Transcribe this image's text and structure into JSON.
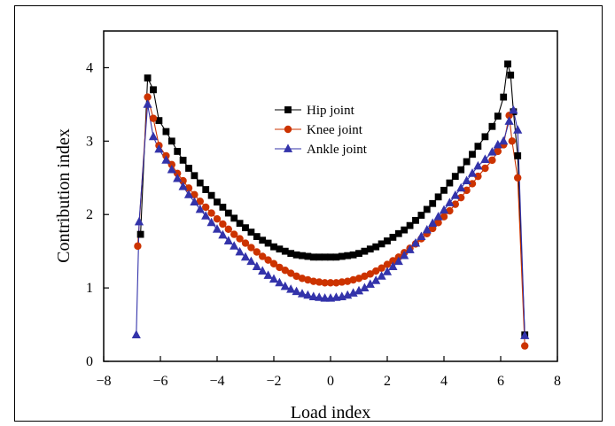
{
  "chart_data": {
    "type": "line",
    "title": "",
    "xlabel": "Load index",
    "ylabel": "Contribution index",
    "xlim": [
      -8,
      8
    ],
    "ylim": [
      0,
      4.5
    ],
    "xticks": [
      -8,
      -6,
      -4,
      -2,
      0,
      2,
      4,
      6,
      8
    ],
    "yticks": [
      0,
      1,
      2,
      3,
      4
    ],
    "grid": false,
    "legend_position": "upper-center",
    "series": [
      {
        "name": "Hip joint",
        "color": "#000000",
        "marker": "square",
        "points": [
          [
            -6.7,
            1.73
          ],
          [
            -6.45,
            3.86
          ],
          [
            -6.25,
            3.7
          ],
          [
            -6.05,
            3.28
          ],
          [
            -5.8,
            3.13
          ],
          [
            -5.6,
            3.0
          ],
          [
            -5.4,
            2.86
          ],
          [
            -5.2,
            2.74
          ],
          [
            -5.0,
            2.63
          ],
          [
            -4.8,
            2.53
          ],
          [
            -4.6,
            2.43
          ],
          [
            -4.4,
            2.34
          ],
          [
            -4.2,
            2.26
          ],
          [
            -4.0,
            2.17
          ],
          [
            -3.8,
            2.1
          ],
          [
            -3.6,
            2.02
          ],
          [
            -3.4,
            1.95
          ],
          [
            -3.2,
            1.88
          ],
          [
            -3.0,
            1.82
          ],
          [
            -2.8,
            1.76
          ],
          [
            -2.6,
            1.7
          ],
          [
            -2.4,
            1.65
          ],
          [
            -2.2,
            1.61
          ],
          [
            -2.0,
            1.56
          ],
          [
            -1.8,
            1.53
          ],
          [
            -1.6,
            1.5
          ],
          [
            -1.4,
            1.47
          ],
          [
            -1.2,
            1.45
          ],
          [
            -1.0,
            1.44
          ],
          [
            -0.8,
            1.43
          ],
          [
            -0.6,
            1.42
          ],
          [
            -0.4,
            1.42
          ],
          [
            -0.2,
            1.42
          ],
          [
            0.0,
            1.42
          ],
          [
            0.2,
            1.42
          ],
          [
            0.4,
            1.43
          ],
          [
            0.6,
            1.44
          ],
          [
            0.8,
            1.45
          ],
          [
            1.0,
            1.47
          ],
          [
            1.2,
            1.5
          ],
          [
            1.4,
            1.53
          ],
          [
            1.6,
            1.56
          ],
          [
            1.8,
            1.6
          ],
          [
            2.0,
            1.64
          ],
          [
            2.2,
            1.69
          ],
          [
            2.4,
            1.74
          ],
          [
            2.6,
            1.79
          ],
          [
            2.8,
            1.85
          ],
          [
            3.0,
            1.92
          ],
          [
            3.2,
            1.99
          ],
          [
            3.4,
            2.07
          ],
          [
            3.6,
            2.15
          ],
          [
            3.8,
            2.24
          ],
          [
            4.0,
            2.33
          ],
          [
            4.2,
            2.43
          ],
          [
            4.4,
            2.52
          ],
          [
            4.6,
            2.61
          ],
          [
            4.8,
            2.72
          ],
          [
            5.0,
            2.82
          ],
          [
            5.2,
            2.93
          ],
          [
            5.45,
            3.06
          ],
          [
            5.7,
            3.2
          ],
          [
            5.9,
            3.34
          ],
          [
            6.1,
            3.6
          ],
          [
            6.25,
            4.05
          ],
          [
            6.35,
            3.9
          ],
          [
            6.45,
            3.4
          ],
          [
            6.6,
            2.8
          ],
          [
            6.85,
            0.36
          ]
        ]
      },
      {
        "name": "Knee joint",
        "color": "#cc3300",
        "marker": "circle",
        "points": [
          [
            -6.8,
            1.57
          ],
          [
            -6.45,
            3.6
          ],
          [
            -6.25,
            3.31
          ],
          [
            -6.05,
            2.94
          ],
          [
            -5.8,
            2.8
          ],
          [
            -5.6,
            2.68
          ],
          [
            -5.4,
            2.56
          ],
          [
            -5.2,
            2.46
          ],
          [
            -5.0,
            2.36
          ],
          [
            -4.8,
            2.27
          ],
          [
            -4.6,
            2.18
          ],
          [
            -4.4,
            2.1
          ],
          [
            -4.2,
            2.02
          ],
          [
            -4.0,
            1.94
          ],
          [
            -3.8,
            1.87
          ],
          [
            -3.6,
            1.8
          ],
          [
            -3.4,
            1.73
          ],
          [
            -3.2,
            1.67
          ],
          [
            -3.0,
            1.61
          ],
          [
            -2.8,
            1.55
          ],
          [
            -2.6,
            1.49
          ],
          [
            -2.4,
            1.43
          ],
          [
            -2.2,
            1.38
          ],
          [
            -2.0,
            1.33
          ],
          [
            -1.8,
            1.28
          ],
          [
            -1.6,
            1.24
          ],
          [
            -1.4,
            1.2
          ],
          [
            -1.2,
            1.16
          ],
          [
            -1.0,
            1.13
          ],
          [
            -0.8,
            1.11
          ],
          [
            -0.6,
            1.09
          ],
          [
            -0.4,
            1.08
          ],
          [
            -0.2,
            1.07
          ],
          [
            0.0,
            1.07
          ],
          [
            0.2,
            1.07
          ],
          [
            0.4,
            1.08
          ],
          [
            0.6,
            1.09
          ],
          [
            0.8,
            1.11
          ],
          [
            1.0,
            1.13
          ],
          [
            1.2,
            1.16
          ],
          [
            1.4,
            1.19
          ],
          [
            1.6,
            1.23
          ],
          [
            1.8,
            1.27
          ],
          [
            2.0,
            1.32
          ],
          [
            2.2,
            1.37
          ],
          [
            2.4,
            1.42
          ],
          [
            2.6,
            1.48
          ],
          [
            2.8,
            1.54
          ],
          [
            3.0,
            1.6
          ],
          [
            3.2,
            1.67
          ],
          [
            3.4,
            1.74
          ],
          [
            3.6,
            1.81
          ],
          [
            3.8,
            1.89
          ],
          [
            4.0,
            1.97
          ],
          [
            4.2,
            2.05
          ],
          [
            4.4,
            2.14
          ],
          [
            4.6,
            2.23
          ],
          [
            4.8,
            2.33
          ],
          [
            5.0,
            2.42
          ],
          [
            5.2,
            2.52
          ],
          [
            5.45,
            2.63
          ],
          [
            5.7,
            2.74
          ],
          [
            5.9,
            2.86
          ],
          [
            6.1,
            2.95
          ],
          [
            6.3,
            3.35
          ],
          [
            6.4,
            3.0
          ],
          [
            6.6,
            2.5
          ],
          [
            6.85,
            0.21
          ]
        ]
      },
      {
        "name": "Ankle joint",
        "color": "#3333aa",
        "marker": "triangle",
        "points": [
          [
            -6.85,
            0.36
          ],
          [
            -6.75,
            1.9
          ],
          [
            -6.45,
            3.5
          ],
          [
            -6.25,
            3.06
          ],
          [
            -6.05,
            2.89
          ],
          [
            -5.8,
            2.74
          ],
          [
            -5.6,
            2.61
          ],
          [
            -5.4,
            2.49
          ],
          [
            -5.2,
            2.38
          ],
          [
            -5.0,
            2.27
          ],
          [
            -4.8,
            2.17
          ],
          [
            -4.6,
            2.07
          ],
          [
            -4.4,
            1.98
          ],
          [
            -4.2,
            1.89
          ],
          [
            -4.0,
            1.8
          ],
          [
            -3.8,
            1.72
          ],
          [
            -3.6,
            1.64
          ],
          [
            -3.4,
            1.57
          ],
          [
            -3.2,
            1.49
          ],
          [
            -3.0,
            1.42
          ],
          [
            -2.8,
            1.36
          ],
          [
            -2.6,
            1.29
          ],
          [
            -2.4,
            1.23
          ],
          [
            -2.2,
            1.17
          ],
          [
            -2.0,
            1.12
          ],
          [
            -1.8,
            1.07
          ],
          [
            -1.6,
            1.02
          ],
          [
            -1.4,
            0.98
          ],
          [
            -1.2,
            0.95
          ],
          [
            -1.0,
            0.92
          ],
          [
            -0.8,
            0.9
          ],
          [
            -0.6,
            0.88
          ],
          [
            -0.4,
            0.87
          ],
          [
            -0.2,
            0.86
          ],
          [
            0.0,
            0.86
          ],
          [
            0.2,
            0.87
          ],
          [
            0.4,
            0.88
          ],
          [
            0.6,
            0.9
          ],
          [
            0.8,
            0.93
          ],
          [
            1.0,
            0.96
          ],
          [
            1.2,
            1.0
          ],
          [
            1.4,
            1.05
          ],
          [
            1.6,
            1.1
          ],
          [
            1.8,
            1.16
          ],
          [
            2.0,
            1.22
          ],
          [
            2.2,
            1.29
          ],
          [
            2.4,
            1.36
          ],
          [
            2.6,
            1.44
          ],
          [
            2.8,
            1.52
          ],
          [
            3.0,
            1.61
          ],
          [
            3.2,
            1.7
          ],
          [
            3.4,
            1.79
          ],
          [
            3.6,
            1.88
          ],
          [
            3.8,
            1.97
          ],
          [
            4.0,
            2.06
          ],
          [
            4.2,
            2.16
          ],
          [
            4.4,
            2.26
          ],
          [
            4.6,
            2.36
          ],
          [
            4.8,
            2.46
          ],
          [
            5.0,
            2.56
          ],
          [
            5.2,
            2.66
          ],
          [
            5.45,
            2.75
          ],
          [
            5.7,
            2.85
          ],
          [
            5.9,
            2.95
          ],
          [
            6.1,
            3.0
          ],
          [
            6.3,
            3.27
          ],
          [
            6.45,
            3.42
          ],
          [
            6.6,
            3.15
          ],
          [
            6.85,
            0.35
          ]
        ]
      }
    ]
  }
}
